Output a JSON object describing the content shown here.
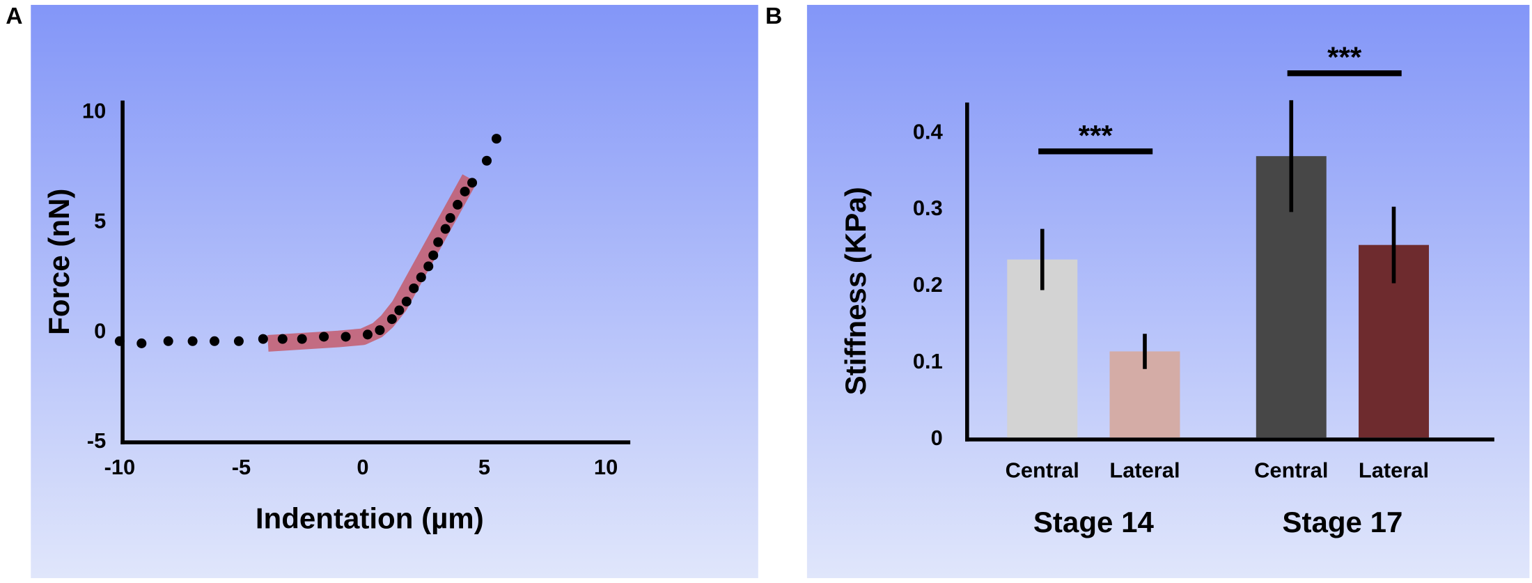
{
  "chart_data": [
    {
      "type": "scatter",
      "panel_label": "A",
      "xlabel": "Indentation (µm)",
      "ylabel": "Force (nN)",
      "xlim": [
        -10,
        10
      ],
      "ylim": [
        -5,
        10
      ],
      "xticks": [
        -10,
        -5,
        0,
        5,
        10
      ],
      "yticks": [
        -5,
        0,
        5,
        10
      ],
      "series": [
        {
          "color": "#000000",
          "x": [
            -10.0,
            -9.1,
            -8.0,
            -7.0,
            -6.1,
            -5.1,
            -4.1,
            -3.3,
            -2.5,
            -1.6,
            -0.7,
            0.2,
            0.7,
            1.2,
            1.5,
            1.8,
            2.1,
            2.4,
            2.7,
            2.9,
            3.1,
            3.4,
            3.6,
            3.9,
            4.2,
            4.5,
            5.1,
            5.5
          ],
          "values": [
            -0.4,
            -0.5,
            -0.4,
            -0.4,
            -0.4,
            -0.4,
            -0.3,
            -0.3,
            -0.3,
            -0.2,
            -0.2,
            -0.1,
            0.1,
            0.6,
            1.0,
            1.4,
            2.0,
            2.5,
            3.0,
            3.5,
            4.1,
            4.7,
            5.2,
            5.8,
            6.4,
            6.8,
            7.8,
            8.8
          ]
        }
      ],
      "highlight": {
        "color": "#c45c6c",
        "x": [
          -3.9,
          -1.0,
          0.0,
          0.6,
          1.0,
          1.5,
          4.4
        ],
        "values": [
          -0.5,
          -0.3,
          -0.2,
          0.1,
          0.5,
          1.2,
          7.0
        ]
      }
    },
    {
      "type": "bar",
      "panel_label": "B",
      "ylabel": "Stiffness (KPa)",
      "categories": [
        "Central",
        "Lateral",
        "Central",
        "Lateral"
      ],
      "group_labels": [
        "Stage 14",
        "Stage 17"
      ],
      "values": [
        0.235,
        0.115,
        0.37,
        0.254
      ],
      "errors": [
        0.04,
        0.023,
        0.073,
        0.05
      ],
      "colors": [
        "#d3d3d3",
        "#d4aca6",
        "#474747",
        "#6e2b2e"
      ],
      "annotations": [
        "***",
        "***"
      ],
      "ylim": [
        0,
        0.44
      ],
      "yticks": [
        0,
        0.1,
        0.2,
        0.3,
        0.4
      ]
    }
  ]
}
